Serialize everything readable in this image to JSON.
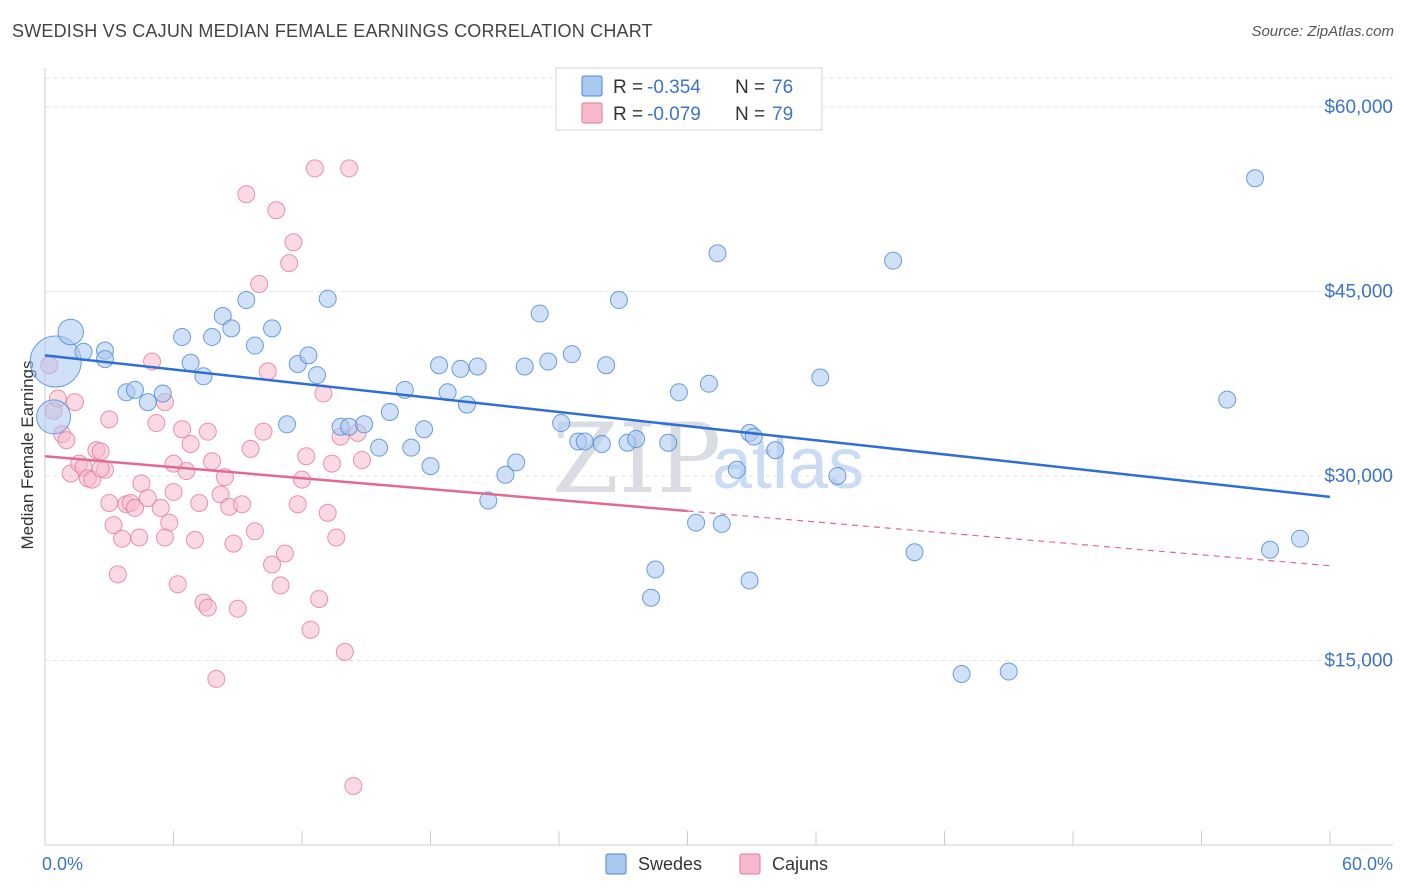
{
  "title": "SWEDISH VS CAJUN MEDIAN FEMALE EARNINGS CORRELATION CHART",
  "source": "Source: ZipAtlas.com",
  "watermark": {
    "zip": "ZIP",
    "atlas": "atlas"
  },
  "colors": {
    "swedes_fill": "#a9c8f0",
    "swedes_stroke": "#4a86d6",
    "swedes_line": "#2f6fd1",
    "cajuns_fill": "#f7b9cc",
    "cajuns_stroke": "#e17a9a",
    "cajuns_line": "#e06a93",
    "grid": "#e3e3e3",
    "axis_label": "#3b74c8"
  },
  "legend": {
    "row1": {
      "r_label": "R = ",
      "r_value": "-0.354",
      "n_label": "N = ",
      "n_value": "76"
    },
    "row2": {
      "r_label": "R = ",
      "r_value": "-0.079",
      "n_label": "N = ",
      "n_value": "79"
    }
  },
  "chart_data": {
    "type": "scatter",
    "title": "SWEDISH VS CAJUN MEDIAN FEMALE EARNINGS CORRELATION CHART",
    "xlabel": "",
    "ylabel": "Median Female Earnings",
    "xlim": [
      0,
      60
    ],
    "ylim": [
      0,
      63000
    ],
    "x_tick_labels": [
      "0.0%",
      "60.0%"
    ],
    "y_ticks": [
      15000,
      30000,
      45000,
      60000
    ],
    "y_tick_labels": [
      "$15,000",
      "$30,000",
      "$45,000",
      "$60,000"
    ],
    "grid": true,
    "legend_position": "bottom-center",
    "series": [
      {
        "name": "Swedes",
        "r": -0.354,
        "n": 76,
        "trend": {
          "x0": 0,
          "y0": 39800,
          "x1": 60,
          "y1": 28300,
          "dashed_from": null
        },
        "points": [
          [
            0.5,
            39300,
            3
          ],
          [
            0.4,
            34800,
            2
          ],
          [
            1.2,
            41700,
            1.5
          ],
          [
            1.8,
            40100,
            1
          ],
          [
            2.8,
            40200,
            1
          ],
          [
            2.8,
            39500,
            1
          ],
          [
            3.8,
            36800,
            1
          ],
          [
            4.2,
            37000,
            1
          ],
          [
            4.8,
            36000,
            1
          ],
          [
            5.5,
            36700,
            1
          ],
          [
            6.4,
            41300,
            1
          ],
          [
            6.8,
            39200,
            1
          ],
          [
            7.4,
            38100,
            1
          ],
          [
            7.8,
            41300,
            1
          ],
          [
            8.3,
            43000,
            1
          ],
          [
            8.7,
            42000,
            1
          ],
          [
            9.4,
            44300,
            1
          ],
          [
            9.8,
            40600,
            1
          ],
          [
            10.6,
            42000,
            1
          ],
          [
            11.3,
            34200,
            1
          ],
          [
            11.8,
            39100,
            1
          ],
          [
            12.3,
            39800,
            1
          ],
          [
            12.7,
            38200,
            1
          ],
          [
            13.2,
            44400,
            1
          ],
          [
            13.8,
            34000,
            1
          ],
          [
            14.2,
            34000,
            1
          ],
          [
            14.9,
            34200,
            1
          ],
          [
            15.6,
            32300,
            1
          ],
          [
            16.1,
            35200,
            1
          ],
          [
            16.8,
            37000,
            1
          ],
          [
            17.1,
            32300,
            1
          ],
          [
            17.7,
            33800,
            1
          ],
          [
            18.0,
            30800,
            1
          ],
          [
            18.4,
            39000,
            1
          ],
          [
            18.8,
            36800,
            1
          ],
          [
            19.4,
            38700,
            1
          ],
          [
            19.7,
            35800,
            1
          ],
          [
            20.2,
            38900,
            1
          ],
          [
            20.7,
            28000,
            1
          ],
          [
            21.5,
            30100,
            1
          ],
          [
            22.0,
            31100,
            1
          ],
          [
            22.4,
            38900,
            1
          ],
          [
            23.1,
            43200,
            1
          ],
          [
            23.5,
            39300,
            1
          ],
          [
            24.1,
            34300,
            1
          ],
          [
            24.6,
            39900,
            1
          ],
          [
            24.9,
            32800,
            1
          ],
          [
            25.2,
            32800,
            1
          ],
          [
            26.0,
            32600,
            1
          ],
          [
            26.2,
            39000,
            1
          ],
          [
            26.8,
            44300,
            1
          ],
          [
            27.2,
            32700,
            1
          ],
          [
            27.6,
            33000,
            1
          ],
          [
            28.3,
            20100,
            1
          ],
          [
            28.5,
            22400,
            1
          ],
          [
            29.1,
            32700,
            1
          ],
          [
            29.6,
            36800,
            1
          ],
          [
            30.4,
            26200,
            1
          ],
          [
            31.0,
            37500,
            1
          ],
          [
            31.4,
            48100,
            1
          ],
          [
            31.6,
            26100,
            1
          ],
          [
            32.3,
            30500,
            1
          ],
          [
            32.9,
            33500,
            1
          ],
          [
            32.9,
            21500,
            1
          ],
          [
            33.1,
            33200,
            1
          ],
          [
            34.1,
            32100,
            1
          ],
          [
            36.2,
            38000,
            1
          ],
          [
            37.0,
            30000,
            1
          ],
          [
            39.6,
            47500,
            1
          ],
          [
            40.6,
            23800,
            1
          ],
          [
            42.8,
            13900,
            1
          ],
          [
            45.0,
            14100,
            1
          ],
          [
            55.2,
            36200,
            1
          ],
          [
            56.5,
            54200,
            1
          ],
          [
            57.2,
            24000,
            1
          ],
          [
            58.6,
            24900,
            1
          ]
        ]
      },
      {
        "name": "Cajuns",
        "r": -0.079,
        "n": 79,
        "trend": {
          "x0": 0,
          "y0": 31600,
          "x1": 60,
          "y1": 22700,
          "dashed_from": 30
        },
        "points": [
          [
            0.2,
            39000,
            1
          ],
          [
            0.4,
            35300,
            1
          ],
          [
            0.6,
            36300,
            1
          ],
          [
            0.8,
            33400,
            1
          ],
          [
            1.0,
            32900,
            1
          ],
          [
            1.2,
            30200,
            1
          ],
          [
            1.4,
            36000,
            1
          ],
          [
            1.6,
            31000,
            1
          ],
          [
            1.8,
            30700,
            1
          ],
          [
            2.0,
            29800,
            1
          ],
          [
            2.2,
            29700,
            1
          ],
          [
            2.4,
            32100,
            1
          ],
          [
            2.6,
            32000,
            1
          ],
          [
            2.8,
            30500,
            1
          ],
          [
            3.0,
            34600,
            1
          ],
          [
            3.2,
            26000,
            1
          ],
          [
            3.4,
            22000,
            1
          ],
          [
            3.6,
            24900,
            1
          ],
          [
            3.8,
            27700,
            1
          ],
          [
            4.0,
            27800,
            1
          ],
          [
            4.2,
            27400,
            1
          ],
          [
            4.5,
            29400,
            1
          ],
          [
            4.8,
            28200,
            1
          ],
          [
            5.0,
            39300,
            1
          ],
          [
            5.2,
            34300,
            1
          ],
          [
            5.4,
            27400,
            1
          ],
          [
            5.6,
            36000,
            1
          ],
          [
            5.8,
            26200,
            1
          ],
          [
            6.0,
            28700,
            1
          ],
          [
            6.2,
            21200,
            1
          ],
          [
            6.4,
            33800,
            1
          ],
          [
            6.6,
            30400,
            1
          ],
          [
            6.8,
            32600,
            1
          ],
          [
            7.0,
            24800,
            1
          ],
          [
            7.2,
            27800,
            1
          ],
          [
            7.4,
            19700,
            1
          ],
          [
            7.6,
            19300,
            1
          ],
          [
            7.8,
            31200,
            1
          ],
          [
            8.0,
            13500,
            1
          ],
          [
            8.2,
            28500,
            1
          ],
          [
            8.4,
            29900,
            1
          ],
          [
            8.6,
            27500,
            1
          ],
          [
            8.8,
            24500,
            1
          ],
          [
            9.0,
            19200,
            1
          ],
          [
            9.2,
            27700,
            1
          ],
          [
            9.4,
            52900,
            1
          ],
          [
            9.6,
            32200,
            1
          ],
          [
            9.8,
            25500,
            1
          ],
          [
            10.0,
            45600,
            1
          ],
          [
            10.2,
            33600,
            1
          ],
          [
            10.4,
            38500,
            1
          ],
          [
            10.6,
            22800,
            1
          ],
          [
            10.8,
            51600,
            1
          ],
          [
            11.0,
            21100,
            1
          ],
          [
            11.2,
            23700,
            1
          ],
          [
            11.4,
            47300,
            1
          ],
          [
            11.6,
            49000,
            1
          ],
          [
            11.8,
            27700,
            1
          ],
          [
            12.0,
            29700,
            1
          ],
          [
            12.2,
            31600,
            1
          ],
          [
            12.4,
            17500,
            1
          ],
          [
            12.6,
            55000,
            1
          ],
          [
            12.8,
            20000,
            1
          ],
          [
            13.0,
            36700,
            1
          ],
          [
            13.2,
            27000,
            1
          ],
          [
            13.4,
            31000,
            1
          ],
          [
            13.6,
            25000,
            1
          ],
          [
            13.8,
            33200,
            1
          ],
          [
            14.0,
            15700,
            1
          ],
          [
            14.2,
            55000,
            1
          ],
          [
            14.4,
            4800,
            1
          ],
          [
            14.6,
            33500,
            1
          ],
          [
            14.8,
            31300,
            1
          ],
          [
            4.4,
            25000,
            1
          ],
          [
            5.6,
            25000,
            1
          ],
          [
            2.6,
            30600,
            1
          ],
          [
            3.0,
            27800,
            1
          ],
          [
            6.0,
            31000,
            1
          ],
          [
            7.6,
            33600,
            1
          ]
        ]
      }
    ]
  },
  "bottom_legend": {
    "swedes": "Swedes",
    "cajuns": "Cajuns"
  }
}
